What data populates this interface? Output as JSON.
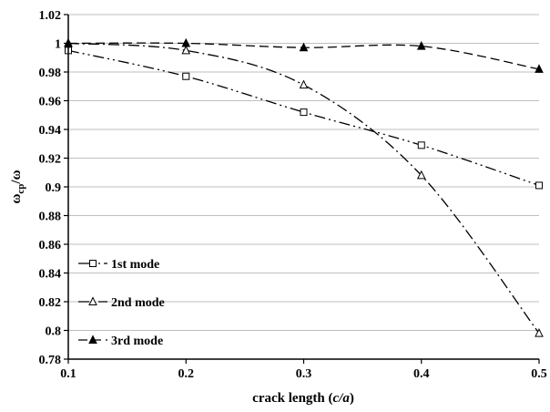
{
  "chart_data": {
    "type": "line",
    "title": "",
    "xlabel": {
      "prefix": "crack length (",
      "italic": "c/a",
      "suffix": ")"
    },
    "ylabel": {
      "base": "ω",
      "sub": "cp",
      "suffix": "/ω"
    },
    "x": [
      0.1,
      0.2,
      0.3,
      0.4,
      0.5
    ],
    "xticks": [
      "0.1",
      "0.2",
      "0.3",
      "0.4",
      "0.5"
    ],
    "yticks": [
      "0.78",
      "0.8",
      "0.82",
      "0.84",
      "0.86",
      "0.88",
      "0.9",
      "0.92",
      "0.94",
      "0.96",
      "0.98",
      "1",
      "1.02"
    ],
    "xlim": [
      0.1,
      0.5
    ],
    "ylim": [
      0.78,
      1.02
    ],
    "grid": "horizontal",
    "legend_position": "bottom-left",
    "series": [
      {
        "name": "1st mode",
        "marker": "open-square",
        "dash": "12 4 2 4 2 4",
        "values": [
          0.995,
          0.977,
          0.952,
          0.929,
          0.901
        ]
      },
      {
        "name": "2nd mode",
        "marker": "open-triangle",
        "dash": "12 4 2 4",
        "values": [
          1.0,
          0.995,
          0.971,
          0.908,
          0.798
        ]
      },
      {
        "name": "3rd mode",
        "marker": "filled-triangle",
        "dash": "10 5",
        "values": [
          1.0,
          1.0,
          0.997,
          0.998,
          0.982
        ]
      }
    ]
  }
}
